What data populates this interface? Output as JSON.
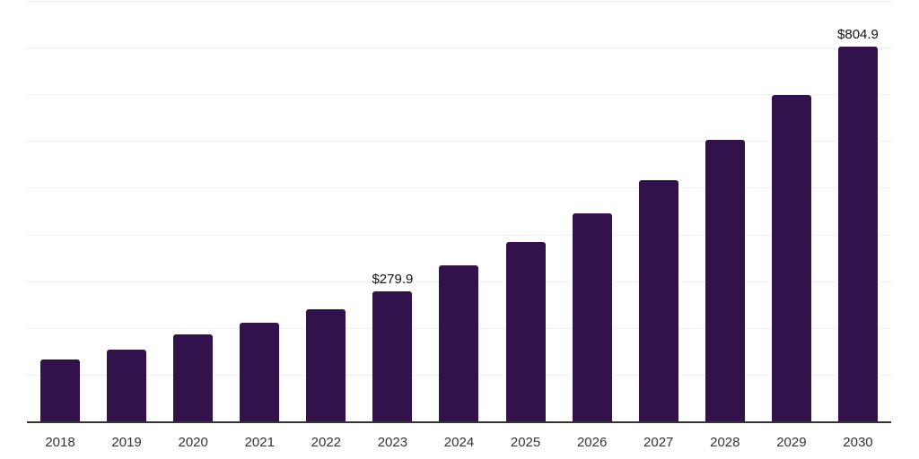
{
  "chart_data": {
    "type": "bar",
    "title": "",
    "xlabel": "",
    "ylabel": "",
    "unit": "USD",
    "categories": [
      "2018",
      "2019",
      "2020",
      "2021",
      "2022",
      "2023",
      "2024",
      "2025",
      "2026",
      "2027",
      "2028",
      "2029",
      "2030"
    ],
    "values": [
      135,
      156,
      188,
      213,
      242,
      279.9,
      336,
      386,
      448,
      519,
      605,
      700,
      804.9
    ],
    "data_labels": [
      "",
      "",
      "",
      "",
      "",
      "$279.9",
      "",
      "",
      "",
      "",
      "",
      "",
      "$804.9"
    ],
    "ylim": [
      0,
      900
    ],
    "grid_step": 100,
    "grid": true,
    "y_tick_labels_visible": false,
    "legend": "none",
    "colors": {
      "bar": "#33114b",
      "axis_line": "#333333",
      "tick_label": "#333333",
      "data_label": "#111111",
      "gridline": "#f0f0f0",
      "gridline_top": "#ececec",
      "background": "#ffffff"
    }
  }
}
